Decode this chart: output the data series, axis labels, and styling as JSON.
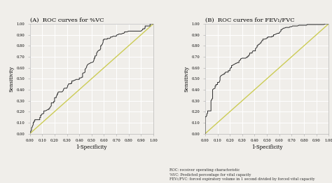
{
  "title_A": "(A)  ROC curves for %VC",
  "title_B": "(B)  ROC curves for FEV₁/FVC",
  "xlabel": "1-Specificity",
  "ylabel": "Sensitivity",
  "xticks": [
    0.0,
    0.1,
    0.2,
    0.3,
    0.4,
    0.5,
    0.6,
    0.7,
    0.8,
    0.9,
    1.0
  ],
  "yticks": [
    0.0,
    0.1,
    0.2,
    0.3,
    0.4,
    0.5,
    0.6,
    0.7,
    0.8,
    0.9,
    1.0
  ],
  "xlim": [
    0.0,
    1.0
  ],
  "ylim": [
    0.0,
    1.0
  ],
  "roc_color": "#2a2a2a",
  "diag_color": "#cccc55",
  "background_color": "#f0eeea",
  "fig_background": "#f0eeea",
  "grid_color": "#ffffff",
  "footnote_lines": [
    "ROC: receiver operating characteristic",
    "%VC: Predicted percentage for vital capacity",
    "FEV₁/FVC: forced expiratory volume in 1 second divided by forced vital capacity"
  ]
}
